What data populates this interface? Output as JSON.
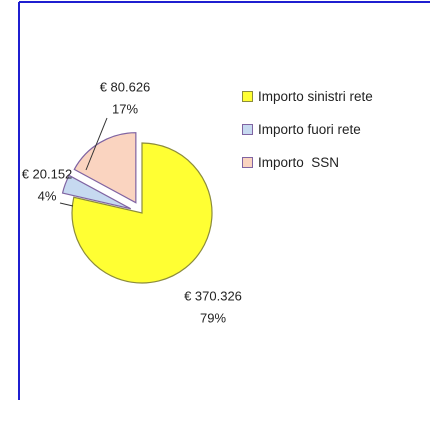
{
  "chart_data": {
    "type": "pie",
    "categories": [
      "Importo sinistri rete",
      "Importo fuori rete",
      "Importo  SSN"
    ],
    "values": [
      370326,
      20152,
      80626
    ],
    "value_labels": [
      "€ 370.326",
      "€ 20.152",
      "€ 80.626"
    ],
    "percents": [
      79,
      4,
      17
    ],
    "percent_labels": [
      "79%",
      "4%",
      "17%"
    ],
    "colors": [
      "#ffff33",
      "#c6d9f0",
      "#fad4c0"
    ],
    "edge_colors": [
      "#8c8c3c",
      "#8064a2",
      "#8064a2"
    ]
  }
}
